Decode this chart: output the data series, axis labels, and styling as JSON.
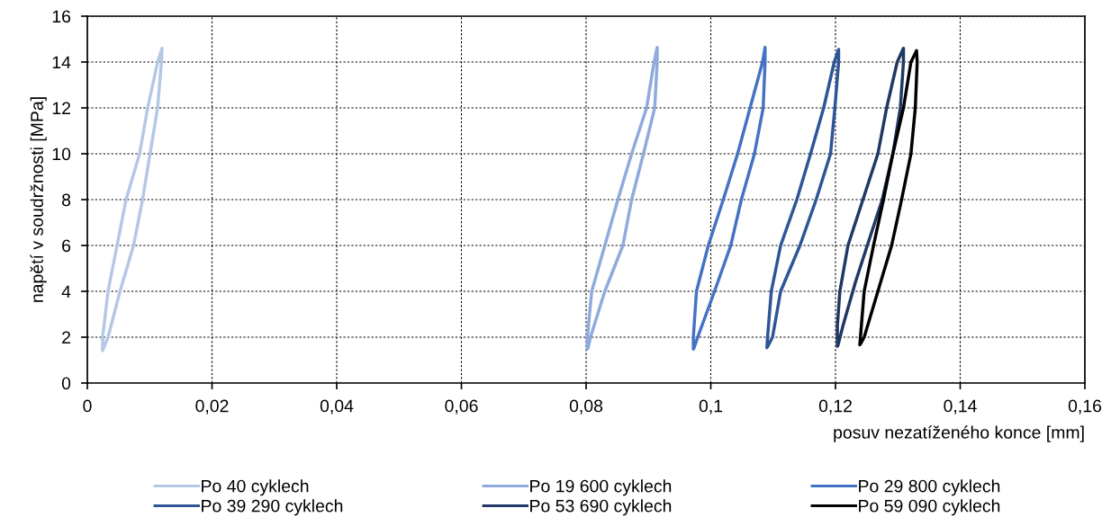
{
  "chart_data": {
    "type": "line",
    "xlabel": "posuv nezatíženého konce [mm]",
    "ylabel": "napětí v soudržnosti [MPa]",
    "xlim": [
      0,
      0.16
    ],
    "ylim": [
      0,
      16
    ],
    "xticks": [
      0,
      {
        "value": 0.02,
        "label": "0,02"
      },
      {
        "value": 0.04,
        "label": "0,04"
      },
      {
        "value": 0.06,
        "label": "0,06"
      },
      {
        "value": 0.08,
        "label": "0,08"
      },
      {
        "value": 0.1,
        "label": "0,1"
      },
      {
        "value": 0.12,
        "label": "0,12"
      },
      {
        "value": 0.14,
        "label": "0,14"
      },
      {
        "value": 0.16,
        "label": "0,16"
      }
    ],
    "yticks": [
      0,
      2,
      4,
      6,
      8,
      10,
      12,
      14,
      16
    ],
    "grid": true,
    "legend": "bottom",
    "marker": "none",
    "line_style": "solid",
    "series": [
      {
        "name": "Po 40 cyklech",
        "color": "#b4c7e7",
        "x": [
          0.00245,
          0.00245,
          0.00332,
          0.00477,
          0.00621,
          0.00838,
          0.00968,
          0.01127,
          0.01199,
          0.01189,
          0.01127,
          0.01006,
          0.00886,
          0.00741,
          0.00524,
          0.00332,
          0.0025
        ],
        "values": [
          1.41,
          2,
          4,
          6,
          8,
          10,
          12,
          14,
          14.6,
          14,
          12,
          10,
          8,
          6,
          4,
          2,
          1.45
        ]
      },
      {
        "name": "Po 19 600 cyklech",
        "color": "#8faadc",
        "x": [
          0.0802,
          0.0802,
          0.0809,
          0.083,
          0.0851,
          0.0873,
          0.0897,
          0.0909,
          0.0914,
          0.0914,
          0.091,
          0.0892,
          0.0873,
          0.0859,
          0.083,
          0.0807,
          0.0803
        ],
        "values": [
          1.48,
          2,
          4,
          6,
          8,
          10,
          12,
          14,
          14.64,
          14,
          12,
          10,
          8,
          6,
          4,
          2,
          1.52
        ]
      },
      {
        "name": "Po 29 800 cyklech",
        "color": "#4472c4",
        "x": [
          0.0972,
          0.0972,
          0.0977,
          0.0996,
          0.102,
          0.1043,
          0.1063,
          0.1083,
          0.1087,
          0.1087,
          0.1084,
          0.107,
          0.1049,
          0.1032,
          0.1006,
          0.0979,
          0.0973
        ],
        "values": [
          1.48,
          2,
          4,
          6,
          8,
          10,
          12,
          14,
          14.64,
          14,
          12,
          10,
          8,
          6,
          4,
          2,
          1.52
        ]
      },
      {
        "name": "Po 39 290 cyklech",
        "color": "#2f5597",
        "x": [
          0.109,
          0.1091,
          0.1097,
          0.1112,
          0.1138,
          0.116,
          0.1181,
          0.1198,
          0.1205,
          0.1205,
          0.1199,
          0.1192,
          0.1169,
          0.1143,
          0.1112,
          0.1099,
          0.1091
        ],
        "values": [
          1.54,
          2,
          4,
          6,
          8,
          10,
          12,
          14,
          14.55,
          14,
          12,
          10,
          8,
          6,
          4,
          2,
          1.58
        ]
      },
      {
        "name": "Po 53 690 cyklech",
        "color": "#203864",
        "x": [
          0.1203,
          0.1203,
          0.1207,
          0.122,
          0.1244,
          0.1268,
          0.1282,
          0.1299,
          0.1309,
          0.1309,
          0.1304,
          0.1292,
          0.1275,
          0.1251,
          0.1232,
          0.1212,
          0.1204
        ],
        "values": [
          1.6,
          2.5,
          4,
          6,
          8,
          10,
          12,
          14,
          14.6,
          14,
          12,
          10,
          8,
          6,
          4.4,
          2.5,
          1.64
        ]
      },
      {
        "name": "Po 59 090 cyklech",
        "color": "#000000",
        "x": [
          0.1239,
          0.124,
          0.1246,
          0.1261,
          0.1277,
          0.1292,
          0.1309,
          0.1321,
          0.133,
          0.1331,
          0.1328,
          0.1321,
          0.1306,
          0.129,
          0.1268,
          0.1246,
          0.124
        ],
        "values": [
          1.67,
          2,
          4,
          6,
          8,
          10,
          12,
          14,
          14.5,
          14,
          12,
          10,
          8,
          6,
          4,
          2,
          1.7
        ]
      }
    ]
  }
}
